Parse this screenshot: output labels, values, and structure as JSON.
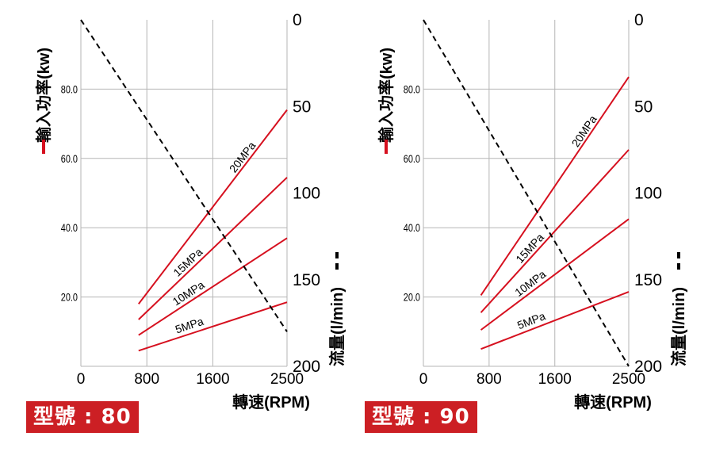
{
  "colors": {
    "power": "#d6101f",
    "flow": "#000000",
    "grid": "#b5b5b5",
    "badge": "#cc1f24"
  },
  "chart_data": [
    {
      "type": "line",
      "model_label": "型號 : 80",
      "xlabel": "轉速(RPM)",
      "ylabel_left": "輸入功率(kw)",
      "ylabel_right": "流量(l/min)",
      "x_ticks": [
        "0",
        "800",
        "1600",
        "2500"
      ],
      "y_left_ticks": [
        "20.0",
        "40.0",
        "60.0",
        "80.0"
      ],
      "y_right_ticks": [
        "0",
        "50",
        "100",
        "150",
        "200"
      ],
      "xlim": [
        0,
        2500
      ],
      "ylim_left": [
        0,
        100
      ],
      "ylim_right_inverted": [
        200,
        0
      ],
      "grid": true,
      "series": [
        {
          "name": "20MPa",
          "axis": "left",
          "x": [
            700,
            2500
          ],
          "y": [
            18.0,
            74.0
          ]
        },
        {
          "name": "15MPa",
          "axis": "left",
          "x": [
            700,
            2500
          ],
          "y": [
            13.5,
            54.5
          ]
        },
        {
          "name": "10MPa",
          "axis": "left",
          "x": [
            700,
            2500
          ],
          "y": [
            9.0,
            37.0
          ]
        },
        {
          "name": "5MPa",
          "axis": "left",
          "x": [
            700,
            2500
          ],
          "y": [
            4.5,
            18.5
          ]
        },
        {
          "name": "",
          "axis": "right",
          "dashed": true,
          "x": [
            0,
            2500
          ],
          "y": [
            0,
            180
          ]
        }
      ]
    },
    {
      "type": "line",
      "model_label": "型號 : 90",
      "xlabel": "轉速(RPM)",
      "ylabel_left": "輸入功率(kw)",
      "ylabel_right": "流量(l/min)",
      "x_ticks": [
        "0",
        "800",
        "1600",
        "2500"
      ],
      "y_left_ticks": [
        "20.0",
        "40.0",
        "60.0",
        "80.0"
      ],
      "y_right_ticks": [
        "0",
        "50",
        "100",
        "150",
        "200"
      ],
      "xlim": [
        0,
        2500
      ],
      "ylim_left": [
        0,
        100
      ],
      "ylim_right_inverted": [
        200,
        0
      ],
      "grid": true,
      "series": [
        {
          "name": "20MPa",
          "axis": "left",
          "x": [
            700,
            2500
          ],
          "y": [
            20.5,
            83.5
          ]
        },
        {
          "name": "15MPa",
          "axis": "left",
          "x": [
            700,
            2500
          ],
          "y": [
            15.5,
            62.5
          ]
        },
        {
          "name": "10MPa",
          "axis": "left",
          "x": [
            700,
            2500
          ],
          "y": [
            10.5,
            42.5
          ]
        },
        {
          "name": "5MPa",
          "axis": "left",
          "x": [
            700,
            2500
          ],
          "y": [
            5.0,
            21.5
          ]
        },
        {
          "name": "",
          "axis": "right",
          "dashed": true,
          "x": [
            0,
            2500
          ],
          "y": [
            0,
            200
          ]
        }
      ]
    }
  ]
}
